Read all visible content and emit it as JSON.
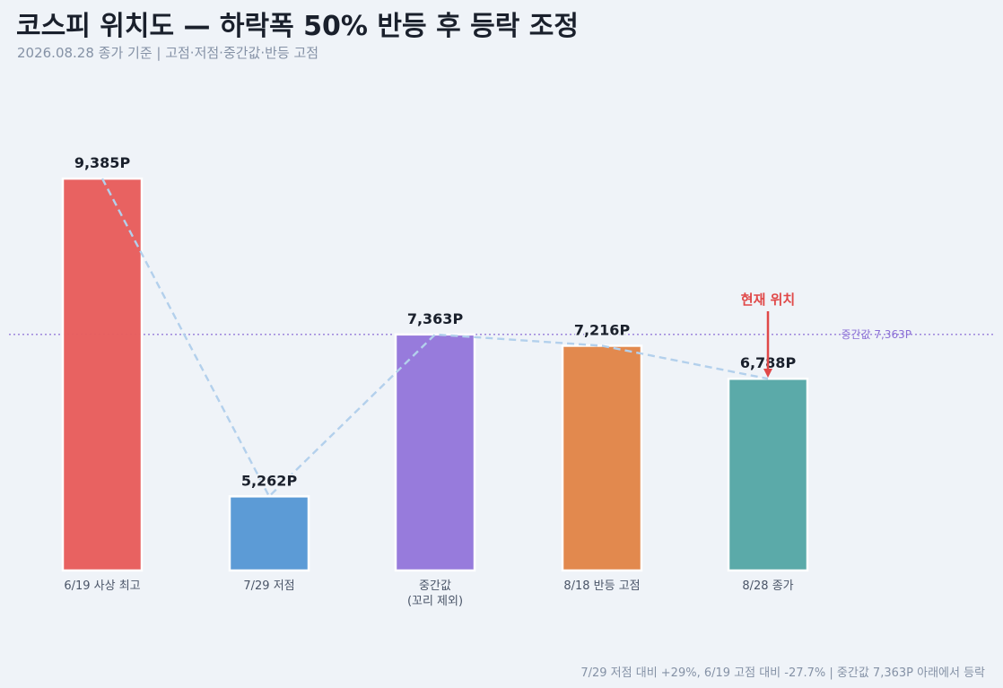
{
  "header": {
    "title": "코스피 위치도 — 하락폭 50% 반등 후 등락 조정",
    "subtitle": "2026.08.28 종가 기준  |  고점·저점·중간값·반등 고점"
  },
  "footer": {
    "note": "7/29 저점 대비 +29%, 6/19 고점 대비 -27.7%  |  중간값 7,363P 아래에서 등락"
  },
  "chart_data": {
    "type": "bar",
    "categories": [
      "6/19 사상 최고",
      "7/29 저점",
      "중간값\n(꼬리 제외)",
      "8/18 반등 고점",
      "8/28 종가"
    ],
    "values": [
      9385,
      5262,
      7363,
      7216,
      6788
    ],
    "value_labels": [
      "9,385P",
      "5,262P",
      "7,363P",
      "7,216P",
      "6,788P"
    ],
    "colors": [
      "#e8605f",
      "#5a9ad6",
      "#9679dc",
      "#e2874b",
      "#59a9a8"
    ],
    "reference_line": {
      "value": 7363,
      "label": "중간값 7,363P",
      "color": "#8b6fd6"
    },
    "annotation": {
      "text": "현재 위치",
      "category_index": 4,
      "color": "#e04848"
    },
    "connector": {
      "style": "dashed",
      "color": "#b3d0ec"
    },
    "ylim": [
      4300,
      10300
    ],
    "grid": false
  }
}
